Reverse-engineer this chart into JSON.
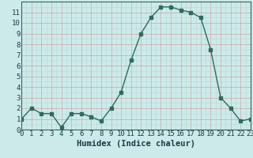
{
  "x": [
    0,
    1,
    2,
    3,
    4,
    5,
    6,
    7,
    8,
    9,
    10,
    11,
    12,
    13,
    14,
    15,
    16,
    17,
    18,
    19,
    20,
    21,
    22,
    23
  ],
  "y": [
    1,
    2,
    1.5,
    1.5,
    0.2,
    1.5,
    1.5,
    1.2,
    0.8,
    2,
    3.5,
    6.5,
    9,
    10.5,
    11.5,
    11.5,
    11.2,
    11,
    10.5,
    7.5,
    3,
    2,
    0.8,
    1
  ],
  "line_color": "#2e6b5e",
  "marker": "s",
  "marker_size": 2.5,
  "bg_color": "#cdeaea",
  "grid_color_minor": "#b8d8d8",
  "grid_color_major": "#aac8c8",
  "xlabel": "Humidex (Indice chaleur)",
  "xlim": [
    0,
    23
  ],
  "ylim": [
    0,
    12
  ],
  "yticks": [
    0,
    1,
    2,
    3,
    4,
    5,
    6,
    7,
    8,
    9,
    10,
    11
  ],
  "xticks": [
    0,
    1,
    2,
    3,
    4,
    5,
    6,
    7,
    8,
    9,
    10,
    11,
    12,
    13,
    14,
    15,
    16,
    17,
    18,
    19,
    20,
    21,
    22,
    23
  ],
  "xlabel_fontsize": 7.5,
  "tick_fontsize": 6.5,
  "label_color": "#1a3a4a",
  "spine_color": "#336655"
}
